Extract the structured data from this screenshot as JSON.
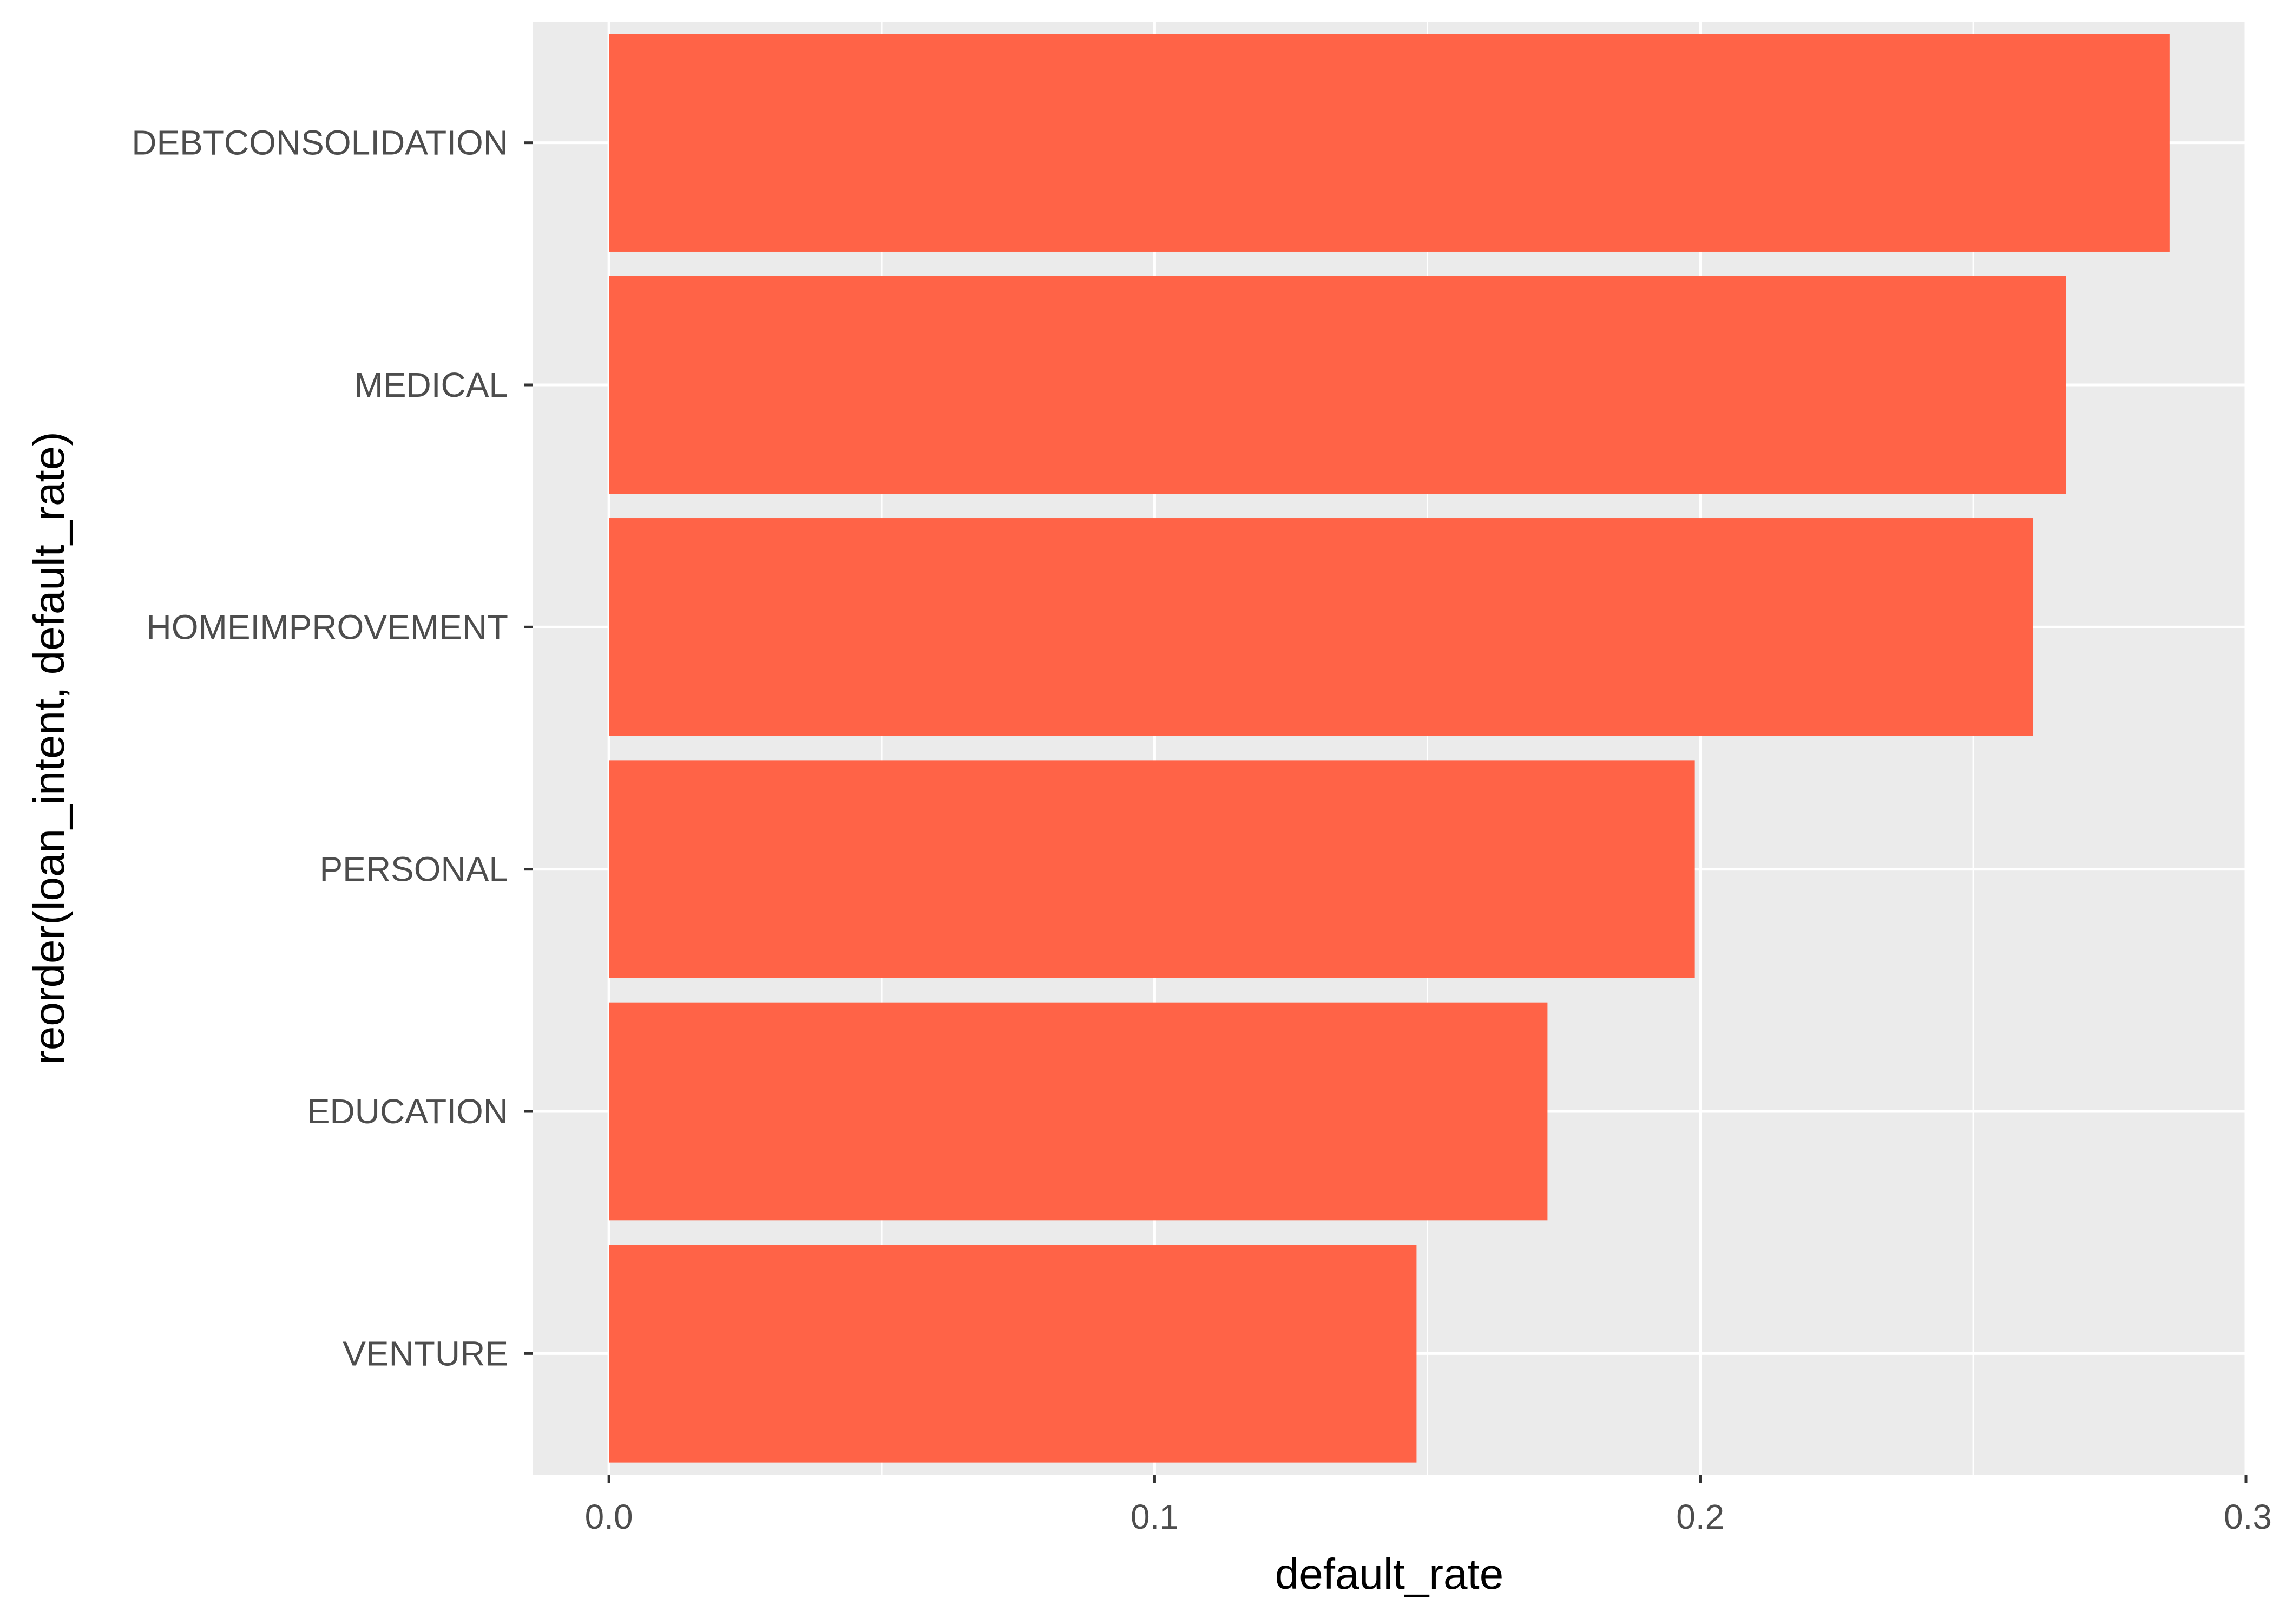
{
  "chart_data": {
    "type": "bar",
    "orientation": "horizontal",
    "xlabel": "default_rate",
    "ylabel": "reorder(loan_intent, default_rate)",
    "xlim": [
      -0.014,
      0.3
    ],
    "x_ticks": [
      0.0,
      0.1,
      0.2,
      0.3
    ],
    "x_tick_labels": [
      "0.0",
      "0.1",
      "0.2",
      "0.3"
    ],
    "categories": [
      "DEBTCONSOLIDATION",
      "MEDICAL",
      "HOMEIMPROVEMENT",
      "PERSONAL",
      "EDUCATION",
      "VENTURE"
    ],
    "values": [
      0.286,
      0.267,
      0.261,
      0.199,
      0.172,
      0.148
    ],
    "grid": true,
    "legend": "none",
    "bar_color": "#FF6347",
    "panel_background": "#EBEBEB",
    "gridline_color": "#FFFFFF"
  }
}
